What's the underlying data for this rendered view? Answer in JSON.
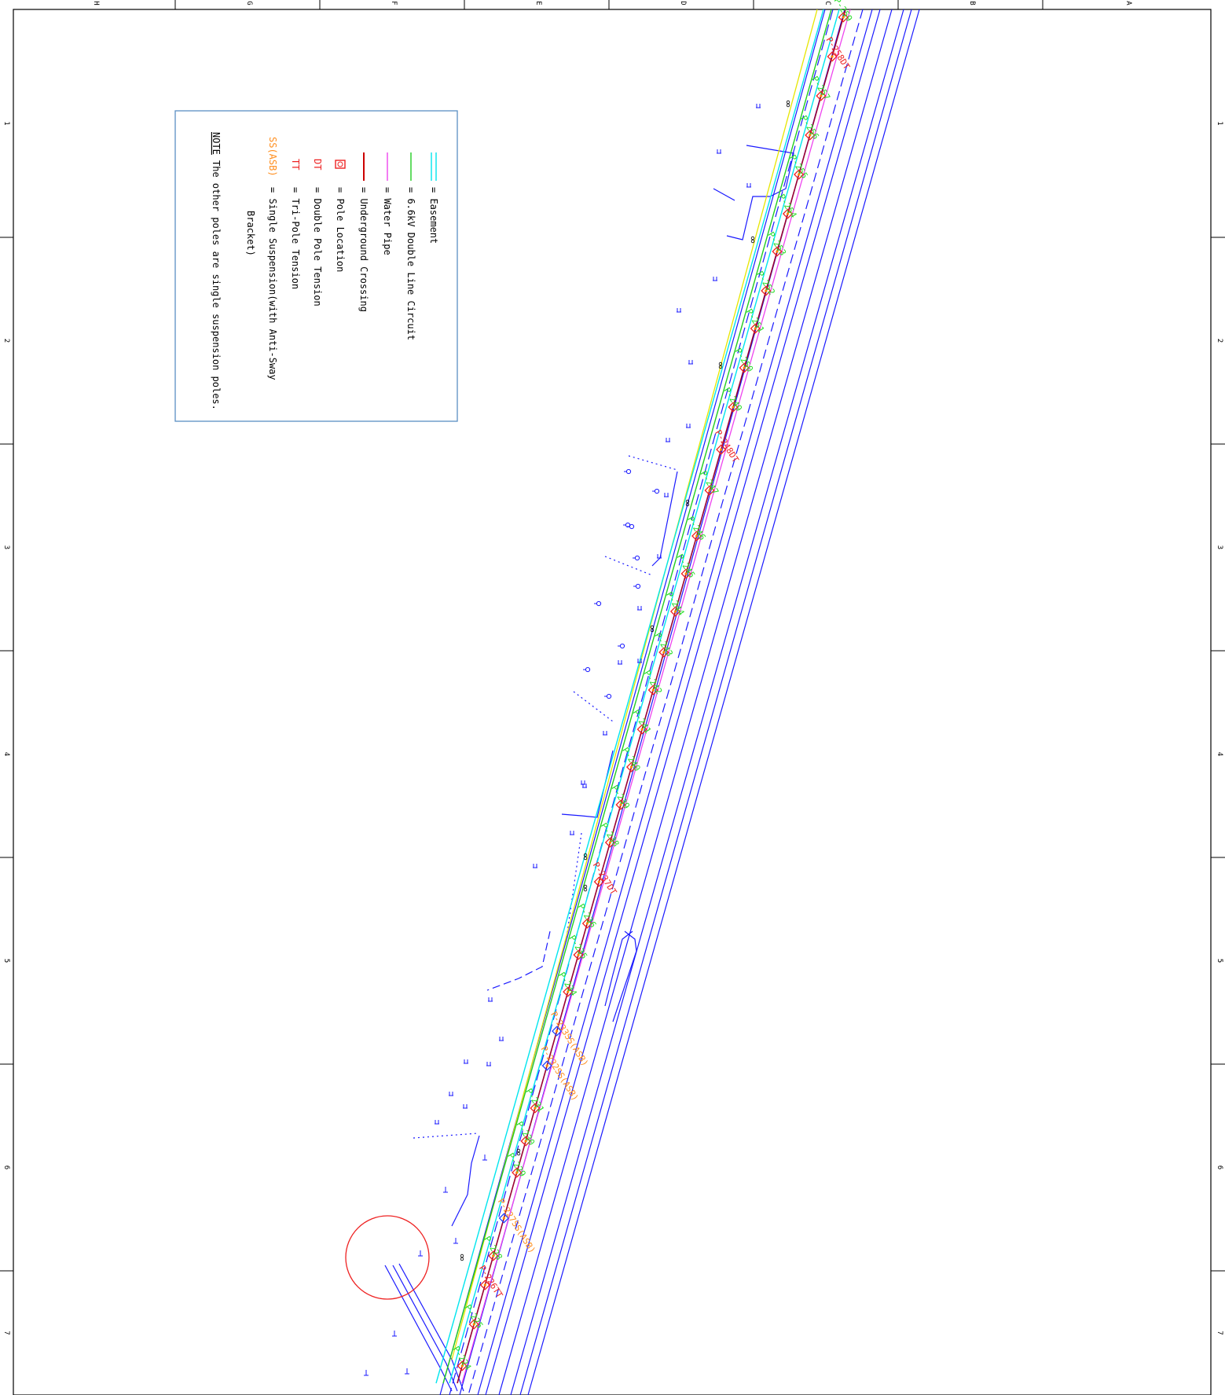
{
  "colors": {
    "easement": "#00e5ee",
    "circuit": "#22cc22",
    "water_pipe": "#ee44ee",
    "underground": "#cc0000",
    "road": "#1a1aff",
    "annotation_green": "#22dd22",
    "annotation_red": "#ee2222",
    "annotation_orange": "#ff8c1a",
    "yellow_line": "#e6e600",
    "legend_border": "#5b8fc4"
  },
  "grid": {
    "top_columns": [
      "H",
      "G",
      "F",
      "E",
      "D",
      "C",
      "B",
      "A"
    ],
    "side_rows": [
      "1",
      "2",
      "3",
      "4",
      "5",
      "6",
      "7"
    ]
  },
  "legend": {
    "items": [
      {
        "symbol": "easement-icon",
        "text": "= Easement"
      },
      {
        "symbol": "circuit-icon",
        "text": "= 6.6kV Double Line Circuit"
      },
      {
        "symbol": "water-pipe-icon",
        "text": "= Water Pipe"
      },
      {
        "symbol": "underground-crossing-icon",
        "text": "= Underground Crossing"
      },
      {
        "symbol": "pole-location-icon",
        "text": "= Pole Location"
      },
      {
        "symbol": "DT",
        "text": "= Double Pole Tension"
      },
      {
        "symbol": "TT",
        "text": "= Tri-Pole Tension"
      },
      {
        "symbol": "SS(ASB)",
        "text": "= Single Suspension(with Anti-Sway"
      },
      {
        "symbol": "",
        "text": "Bracket)"
      }
    ],
    "note_label": "NOTE",
    "note_text": "The other poles are single suspension poles."
  },
  "annotations": {
    "red": [
      "P-258DT",
      "P-248DT",
      "P-237DT",
      "P-226TT"
    ],
    "orange": [
      "P-233SS(ASB)",
      "P-232SS(ASB)",
      "P-227SS(ASB)"
    ],
    "green": [
      "P-259",
      "P-257",
      "P-256",
      "P-255",
      "P-254",
      "P-253",
      "P-252",
      "P-251",
      "P-250",
      "P-249",
      "P-247",
      "P-246",
      "P-245",
      "P-244",
      "P-243",
      "P-242",
      "P-241",
      "P-240",
      "P-239",
      "P-238",
      "P-236",
      "P-235",
      "P-234",
      "P-231",
      "P-230",
      "P-229",
      "P-228",
      "P-225",
      "P-224"
    ]
  }
}
